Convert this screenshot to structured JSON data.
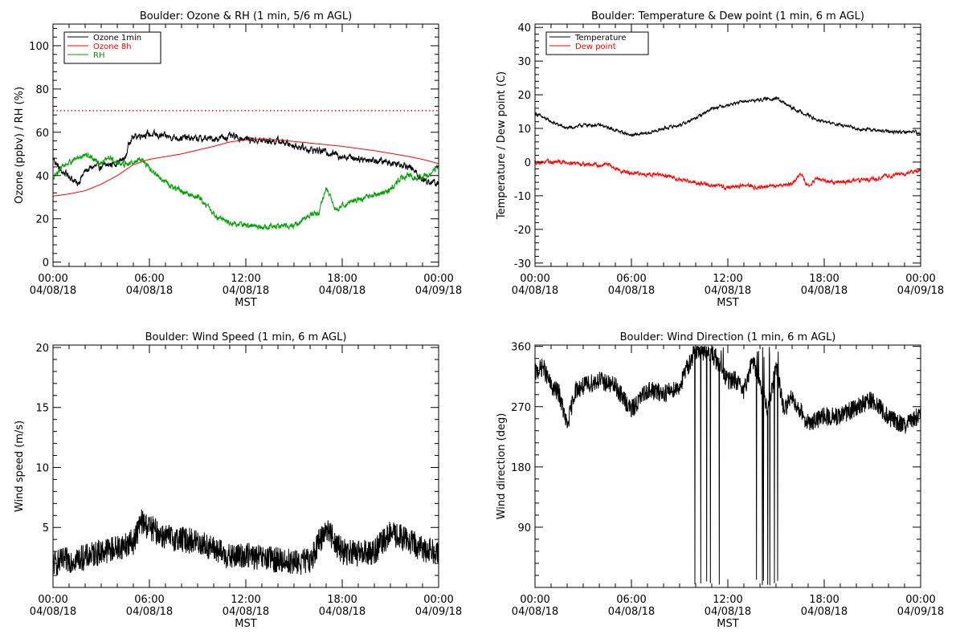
{
  "chart_data": [
    {
      "id": "ozone",
      "type": "line",
      "title": "Boulder: Ozone & RH (1 min, 5/6 m AGL)",
      "xlabel": "MST",
      "ylabel": "Ozone (ppbv) / RH (%)",
      "xlim": [
        0,
        24
      ],
      "ylim": [
        -2,
        110
      ],
      "x_ticks": [
        {
          "t": 0,
          "l1": "00:00",
          "l2": "04/08/18"
        },
        {
          "t": 6,
          "l1": "06:00",
          "l2": "04/08/18"
        },
        {
          "t": 12,
          "l1": "12:00",
          "l2": "04/08/18"
        },
        {
          "t": 18,
          "l1": "18:00",
          "l2": "04/08/18"
        },
        {
          "t": 24,
          "l1": "00:00",
          "l2": "04/09/18"
        }
      ],
      "y_ticks": [
        0,
        20,
        40,
        60,
        80,
        100
      ],
      "legend": "top-left",
      "reference_lines": [
        {
          "y": 70,
          "color": "#ff0000",
          "style": "dotted"
        }
      ],
      "series": [
        {
          "name": "Ozone 1min",
          "color": "#000000",
          "noise": 1.2,
          "points": [
            [
              0,
              48
            ],
            [
              0.5,
              42
            ],
            [
              1,
              40
            ],
            [
              1.5,
              36
            ],
            [
              2,
              42
            ],
            [
              2.5,
              44
            ],
            [
              3,
              44
            ],
            [
              3.5,
              45
            ],
            [
              4,
              46
            ],
            [
              4.5,
              48
            ],
            [
              4.8,
              57
            ],
            [
              5.5,
              59
            ],
            [
              6,
              59
            ],
            [
              7,
              58
            ],
            [
              8,
              57.5
            ],
            [
              9,
              57
            ],
            [
              10,
              57
            ],
            [
              11,
              58
            ],
            [
              12,
              57
            ],
            [
              13,
              56
            ],
            [
              14,
              56
            ],
            [
              15,
              54
            ],
            [
              16,
              52
            ],
            [
              17,
              51
            ],
            [
              18,
              49
            ],
            [
              19,
              48
            ],
            [
              20,
              47
            ],
            [
              21,
              46
            ],
            [
              22,
              45
            ],
            [
              22.5,
              42
            ],
            [
              23,
              38
            ],
            [
              23.5,
              37
            ],
            [
              24,
              36
            ]
          ]
        },
        {
          "name": "Ozone 8h",
          "color": "#ff0000",
          "noise": 0,
          "points": [
            [
              0,
              30.5
            ],
            [
              1,
              31.5
            ],
            [
              2,
              33
            ],
            [
              3,
              36
            ],
            [
              4,
              40
            ],
            [
              5,
              45
            ],
            [
              6,
              47.5
            ],
            [
              8,
              50
            ],
            [
              10,
              53.5
            ],
            [
              11,
              55.5
            ],
            [
              12,
              56.5
            ],
            [
              13,
              57
            ],
            [
              14,
              56.5
            ],
            [
              16,
              55
            ],
            [
              18,
              53.5
            ],
            [
              20,
              51.5
            ],
            [
              22,
              49
            ],
            [
              23,
              47.5
            ],
            [
              24,
              45.5
            ]
          ]
        },
        {
          "name": "RH",
          "color": "#00a000",
          "noise": 1.0,
          "points": [
            [
              0,
              38
            ],
            [
              0.5,
              44
            ],
            [
              1,
              46
            ],
            [
              1.5,
              48
            ],
            [
              2,
              50
            ],
            [
              2.5,
              48
            ],
            [
              3,
              46
            ],
            [
              3.5,
              48
            ],
            [
              4,
              46
            ],
            [
              4.5,
              45
            ],
            [
              5,
              46
            ],
            [
              5.5,
              48
            ],
            [
              6,
              43
            ],
            [
              6.5,
              40
            ],
            [
              7,
              37
            ],
            [
              7.5,
              34
            ],
            [
              8,
              33
            ],
            [
              8.5,
              31
            ],
            [
              9,
              30
            ],
            [
              9.5,
              27
            ],
            [
              10,
              22
            ],
            [
              10.5,
              20
            ],
            [
              11,
              18
            ],
            [
              12,
              17
            ],
            [
              13,
              16
            ],
            [
              14,
              16.5
            ],
            [
              15,
              17
            ],
            [
              15.5,
              19
            ],
            [
              16,
              22
            ],
            [
              16.5,
              22
            ],
            [
              17,
              35
            ],
            [
              17.5,
              25
            ],
            [
              18,
              26
            ],
            [
              19,
              29
            ],
            [
              20,
              31
            ],
            [
              21,
              33
            ],
            [
              21.5,
              38
            ],
            [
              22,
              40
            ],
            [
              22.5,
              39
            ],
            [
              23,
              40
            ],
            [
              23.5,
              40
            ],
            [
              24,
              45
            ]
          ]
        }
      ]
    },
    {
      "id": "temp",
      "type": "line",
      "title": "Boulder: Temperature & Dew point (1 min, 6 m AGL)",
      "xlabel": "MST",
      "ylabel": "Temperature / Dew point (C)",
      "xlim": [
        0,
        24
      ],
      "ylim": [
        -31,
        41
      ],
      "x_ticks": [
        {
          "t": 0,
          "l1": "00:00",
          "l2": "04/08/18"
        },
        {
          "t": 6,
          "l1": "06:00",
          "l2": "04/08/18"
        },
        {
          "t": 12,
          "l1": "12:00",
          "l2": "04/08/18"
        },
        {
          "t": 18,
          "l1": "18:00",
          "l2": "04/08/18"
        },
        {
          "t": 24,
          "l1": "00:00",
          "l2": "04/09/18"
        }
      ],
      "y_ticks": [
        -30,
        -20,
        -10,
        0,
        10,
        20,
        30,
        40
      ],
      "legend": "top-left",
      "reference_lines": [],
      "series": [
        {
          "name": "Temperature",
          "color": "#000000",
          "noise": 0.35,
          "points": [
            [
              0,
              14.5
            ],
            [
              1,
              12
            ],
            [
              2,
              10
            ],
            [
              3,
              11
            ],
            [
              4,
              11
            ],
            [
              5,
              9.5
            ],
            [
              6,
              8
            ],
            [
              7,
              8.5
            ],
            [
              8,
              10
            ],
            [
              9,
              11
            ],
            [
              10,
              13
            ],
            [
              11,
              16
            ],
            [
              12,
              17
            ],
            [
              13,
              18
            ],
            [
              14,
              18.5
            ],
            [
              15,
              19
            ],
            [
              16,
              16
            ],
            [
              17,
              14
            ],
            [
              17.5,
              12.5
            ],
            [
              18,
              12
            ],
            [
              19,
              11
            ],
            [
              20,
              10
            ],
            [
              21,
              9.5
            ],
            [
              22,
              9
            ],
            [
              23,
              9
            ],
            [
              23.7,
              9
            ],
            [
              24,
              8
            ]
          ]
        },
        {
          "name": "Dew point",
          "color": "#ff0000",
          "noise": 0.45,
          "points": [
            [
              0,
              0
            ],
            [
              2,
              0
            ],
            [
              3,
              -0.5
            ],
            [
              4,
              -1
            ],
            [
              4.5,
              -0.5
            ],
            [
              5,
              -2
            ],
            [
              6,
              -3.5
            ],
            [
              7,
              -3.5
            ],
            [
              8,
              -4
            ],
            [
              9,
              -5
            ],
            [
              10,
              -6
            ],
            [
              11,
              -7
            ],
            [
              12,
              -7.5
            ],
            [
              13,
              -7
            ],
            [
              14,
              -7.5
            ],
            [
              15,
              -7
            ],
            [
              16,
              -6.5
            ],
            [
              16.5,
              -3.5
            ],
            [
              17,
              -7
            ],
            [
              17.5,
              -5
            ],
            [
              18,
              -5.5
            ],
            [
              19,
              -6
            ],
            [
              20,
              -5.5
            ],
            [
              21,
              -5
            ],
            [
              22,
              -4
            ],
            [
              23,
              -3.5
            ],
            [
              24,
              -2.5
            ]
          ]
        }
      ]
    },
    {
      "id": "wspd",
      "type": "line",
      "title": "Boulder: Wind Speed (1 min, 6 m AGL)",
      "xlabel": "MST",
      "ylabel": "Wind speed (m/s)",
      "xlim": [
        0,
        24
      ],
      "ylim": [
        0,
        20.2
      ],
      "x_ticks": [
        {
          "t": 0,
          "l1": "00:00",
          "l2": "04/08/18"
        },
        {
          "t": 6,
          "l1": "06:00",
          "l2": "04/08/18"
        },
        {
          "t": 12,
          "l1": "12:00",
          "l2": "04/08/18"
        },
        {
          "t": 18,
          "l1": "18:00",
          "l2": "04/08/18"
        },
        {
          "t": 24,
          "l1": "00:00",
          "l2": "04/09/18"
        }
      ],
      "y_ticks": [
        5,
        10,
        15,
        20
      ],
      "legend": "none",
      "reference_lines": [],
      "series": [
        {
          "name": "",
          "color": "#000000",
          "noise": 1.1,
          "points": [
            [
              0,
              2
            ],
            [
              1,
              2.3
            ],
            [
              2,
              2.5
            ],
            [
              3,
              3
            ],
            [
              4,
              3.3
            ],
            [
              5,
              3.8
            ],
            [
              5.5,
              5.5
            ],
            [
              6,
              5
            ],
            [
              7,
              4.2
            ],
            [
              8,
              4
            ],
            [
              9,
              3.8
            ],
            [
              10,
              3.2
            ],
            [
              11,
              2.5
            ],
            [
              12,
              2.7
            ],
            [
              13,
              2.4
            ],
            [
              14,
              2.3
            ],
            [
              15,
              2.1
            ],
            [
              16,
              2.2
            ],
            [
              17,
              5
            ],
            [
              18,
              3
            ],
            [
              19,
              2.8
            ],
            [
              20,
              3
            ],
            [
              21,
              4.5
            ],
            [
              22,
              4
            ],
            [
              23,
              3.2
            ],
            [
              24,
              3
            ]
          ]
        }
      ]
    },
    {
      "id": "wdir",
      "type": "line",
      "title": "Boulder: Wind Direction (1 min, 6 m AGL)",
      "xlabel": "MST",
      "ylabel": "Wind direction (deg)",
      "xlim": [
        0,
        24
      ],
      "ylim": [
        0,
        362
      ],
      "x_ticks": [
        {
          "t": 0,
          "l1": "00:00",
          "l2": "04/08/18"
        },
        {
          "t": 6,
          "l1": "06:00",
          "l2": "04/08/18"
        },
        {
          "t": 12,
          "l1": "12:00",
          "l2": "04/08/18"
        },
        {
          "t": 18,
          "l1": "18:00",
          "l2": "04/08/18"
        },
        {
          "t": 24,
          "l1": "00:00",
          "l2": "04/09/18"
        }
      ],
      "y_ticks": [
        90,
        180,
        270,
        360
      ],
      "legend": "none",
      "reference_lines": [],
      "wrap_windows": [
        [
          9.8,
          11.8
        ],
        [
          13.7,
          15.2
        ]
      ],
      "series": [
        {
          "name": "",
          "color": "#000000",
          "noise": 14,
          "points": [
            [
              0,
              320
            ],
            [
              0.5,
              330
            ],
            [
              1,
              300
            ],
            [
              1.5,
              290
            ],
            [
              2,
              240
            ],
            [
              2.5,
              295
            ],
            [
              3,
              300
            ],
            [
              4,
              310
            ],
            [
              5,
              300
            ],
            [
              6,
              265
            ],
            [
              7,
              295
            ],
            [
              8,
              290
            ],
            [
              9,
              300
            ],
            [
              9.5,
              330
            ],
            [
              10,
              355
            ],
            [
              11,
              350
            ],
            [
              12,
              310
            ],
            [
              12.5,
              310
            ],
            [
              13,
              290
            ],
            [
              13.5,
              340
            ],
            [
              14,
              310
            ],
            [
              14.5,
              260
            ],
            [
              15,
              330
            ],
            [
              15.5,
              265
            ],
            [
              16,
              285
            ],
            [
              17,
              245
            ],
            [
              18,
              255
            ],
            [
              19,
              255
            ],
            [
              20,
              270
            ],
            [
              21,
              280
            ],
            [
              22,
              255
            ],
            [
              23,
              240
            ],
            [
              24,
              260
            ]
          ]
        }
      ]
    }
  ],
  "panels_layout_hint": "2x2"
}
